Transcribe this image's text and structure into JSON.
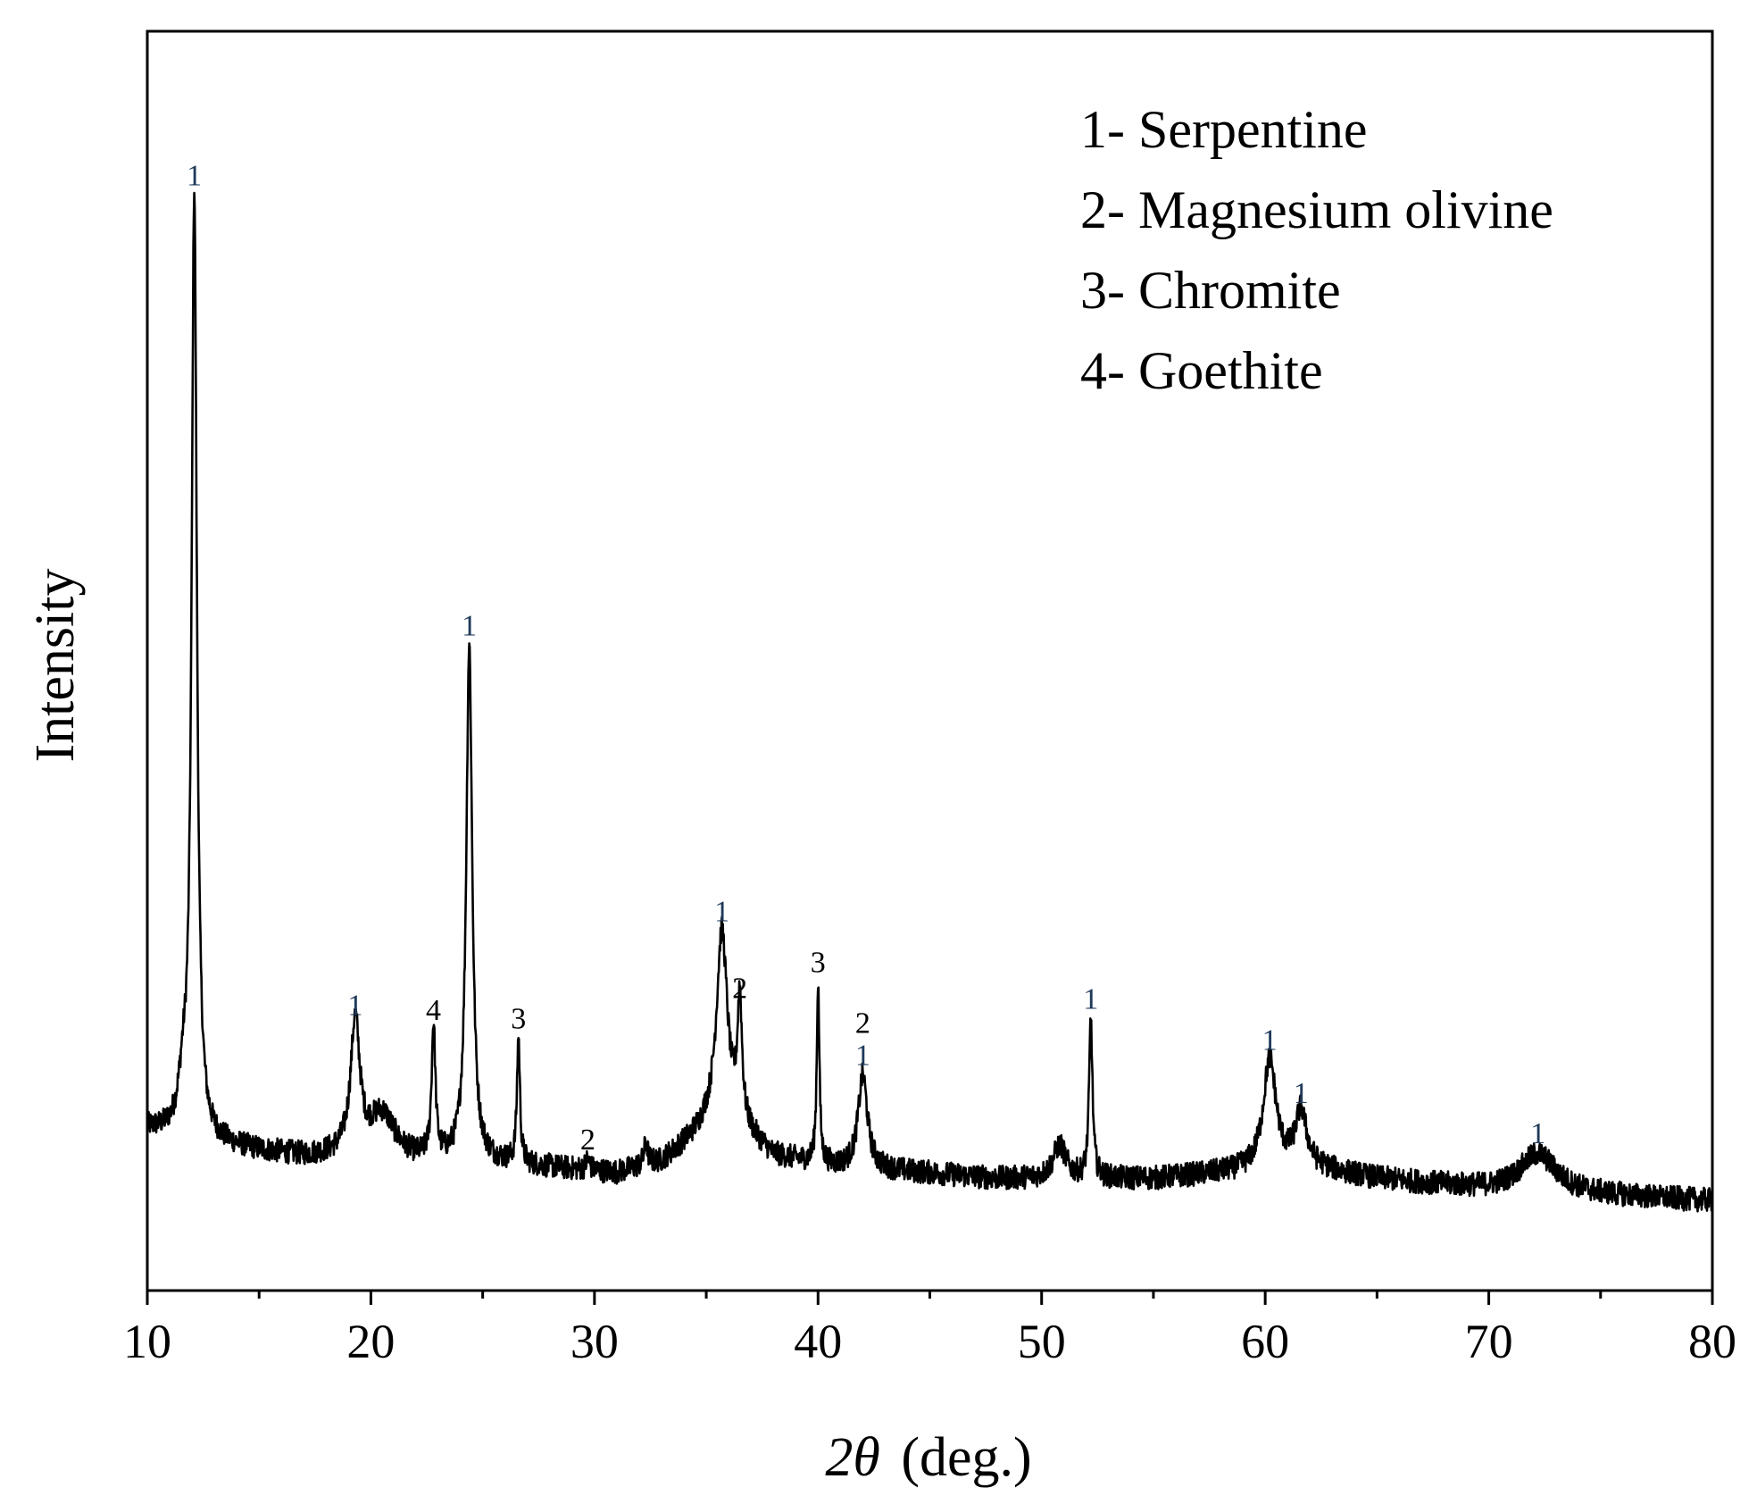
{
  "chart_data": {
    "type": "line",
    "title": "",
    "xlabel": "2θ (deg.)",
    "xlabel_parts": {
      "var": "2θ",
      "unit": "(deg.)"
    },
    "ylabel": "Intensity",
    "xlim": [
      10,
      80
    ],
    "ylim": [
      0,
      100
    ],
    "x_ticks": [
      "10",
      "20",
      "30",
      "40",
      "50",
      "60",
      "70",
      "80"
    ],
    "y_ticks_shown": false,
    "grid": false,
    "legend_position": "top-right",
    "legend": [
      "1- Serpentine",
      "2- Magnesium olivine",
      "3- Chromite",
      "4- Goethite"
    ],
    "colors": {
      "line": "#000000",
      "label_phase_1": "#1f3a5a",
      "label_other": "#000000"
    },
    "baseline": [
      [
        10,
        11
      ],
      [
        12,
        10
      ],
      [
        15,
        9
      ],
      [
        17,
        8.5
      ],
      [
        19,
        8.5
      ],
      [
        22,
        8
      ],
      [
        25,
        8
      ],
      [
        28,
        7.5
      ],
      [
        31,
        7
      ],
      [
        33,
        8
      ],
      [
        35,
        11
      ],
      [
        36.5,
        11
      ],
      [
        38,
        8.5
      ],
      [
        41,
        7.5
      ],
      [
        45,
        7
      ],
      [
        48,
        6.5
      ],
      [
        52,
        6.5
      ],
      [
        55,
        6.5
      ],
      [
        58,
        7
      ],
      [
        62,
        7.5
      ],
      [
        65,
        6.5
      ],
      [
        70,
        5.5
      ],
      [
        75,
        5
      ],
      [
        80,
        4.5
      ]
    ],
    "peaks": [
      {
        "x": 11.6,
        "height": 4,
        "width": 0.25,
        "label": ""
      },
      {
        "x": 12.1,
        "height": 86,
        "width": 0.14,
        "label": "1"
      },
      {
        "x": 19.3,
        "height": 12,
        "width": 0.25,
        "label": "1"
      },
      {
        "x": 20.5,
        "height": 4,
        "width": 0.7,
        "label": ""
      },
      {
        "x": 22.8,
        "height": 12,
        "width": 0.1,
        "label": "4"
      },
      {
        "x": 24.4,
        "height": 47,
        "width": 0.16,
        "label": "1"
      },
      {
        "x": 26.6,
        "height": 11.5,
        "width": 0.08,
        "label": "3"
      },
      {
        "x": 29.7,
        "height": 1,
        "width": 0.1,
        "label": "2"
      },
      {
        "x": 32.3,
        "height": 2,
        "width": 0.1,
        "label": ""
      },
      {
        "x": 35.7,
        "height": 18,
        "width": 0.3,
        "label": "1"
      },
      {
        "x": 36.5,
        "height": 11,
        "width": 0.12,
        "label": "2"
      },
      {
        "x": 40.0,
        "height": 16.5,
        "width": 0.07,
        "label": "3"
      },
      {
        "x": 42.0,
        "height": 8.5,
        "width": 0.25,
        "label": "2 1"
      },
      {
        "x": 50.8,
        "height": 3,
        "width": 0.35,
        "label": ""
      },
      {
        "x": 52.2,
        "height": 14.5,
        "width": 0.09,
        "label": "1"
      },
      {
        "x": 60.2,
        "height": 10,
        "width": 0.35,
        "label": "1"
      },
      {
        "x": 61.6,
        "height": 5,
        "width": 0.3,
        "label": "1"
      },
      {
        "x": 72.2,
        "height": 3.5,
        "width": 1.0,
        "label": "1"
      }
    ]
  }
}
